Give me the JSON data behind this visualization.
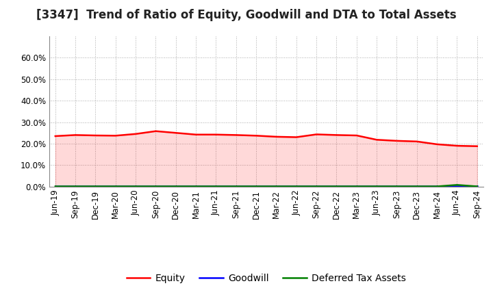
{
  "title": "[3347]  Trend of Ratio of Equity, Goodwill and DTA to Total Assets",
  "x_labels": [
    "Jun-19",
    "Sep-19",
    "Dec-19",
    "Mar-20",
    "Jun-20",
    "Sep-20",
    "Dec-20",
    "Mar-21",
    "Jun-21",
    "Sep-21",
    "Dec-21",
    "Mar-22",
    "Jun-22",
    "Sep-22",
    "Dec-22",
    "Mar-23",
    "Jun-23",
    "Sep-23",
    "Dec-23",
    "Mar-24",
    "Jun-24",
    "Sep-24"
  ],
  "equity": [
    0.235,
    0.24,
    0.238,
    0.237,
    0.245,
    0.258,
    0.25,
    0.242,
    0.242,
    0.24,
    0.237,
    0.232,
    0.23,
    0.243,
    0.24,
    0.238,
    0.218,
    0.213,
    0.21,
    0.197,
    0.19,
    0.188
  ],
  "goodwill": [
    0.002,
    0.002,
    0.002,
    0.002,
    0.002,
    0.002,
    0.002,
    0.002,
    0.002,
    0.002,
    0.002,
    0.002,
    0.002,
    0.002,
    0.002,
    0.002,
    0.002,
    0.002,
    0.002,
    0.002,
    0.002,
    0.002
  ],
  "dta": [
    0.001,
    0.001,
    0.001,
    0.001,
    0.001,
    0.001,
    0.001,
    0.001,
    0.001,
    0.001,
    0.001,
    0.001,
    0.001,
    0.001,
    0.001,
    0.001,
    0.001,
    0.001,
    0.001,
    0.001,
    0.008,
    0.001
  ],
  "equity_color": "#FF0000",
  "goodwill_color": "#0000FF",
  "dta_color": "#008000",
  "ylim_min": 0.0,
  "ylim_max": 0.7,
  "yticks": [
    0.0,
    0.1,
    0.2,
    0.3,
    0.4,
    0.5,
    0.6
  ],
  "background_color": "#FFFFFF",
  "plot_bg_color": "#FFFFFF",
  "grid_color": "#AAAAAA",
  "title_fontsize": 12,
  "tick_fontsize": 8.5,
  "legend_fontsize": 10
}
